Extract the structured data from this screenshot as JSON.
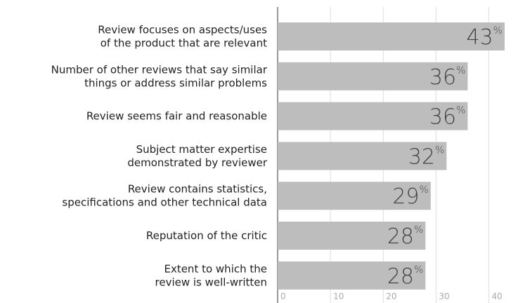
{
  "chart_data": {
    "type": "bar",
    "orientation": "horizontal",
    "categories": [
      "Review focuses on aspects/uses\nof the product that are relevant",
      "Number of other reviews that say similar\nthings or address similar problems",
      "Review seems fair and reasonable",
      "Subject matter expertise\ndemonstrated by reviewer",
      "Review contains statistics,\nspecifications and other technical data",
      "Reputation of the critic",
      "Extent to which the\nreview is well-written"
    ],
    "values": [
      43,
      36,
      36,
      32,
      29,
      28,
      28
    ],
    "value_labels": [
      "43%",
      "36%",
      "36%",
      "32%",
      "29%",
      "28%",
      "28%"
    ],
    "color": "#bdbdbd",
    "xlim": [
      0,
      45
    ],
    "xticks": [
      0,
      10,
      20,
      30,
      40
    ],
    "grid": true
  }
}
